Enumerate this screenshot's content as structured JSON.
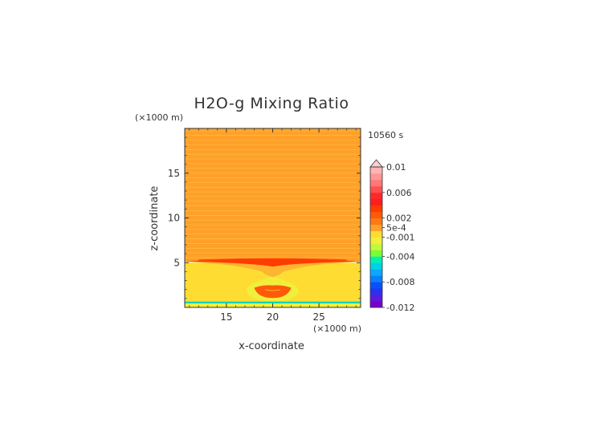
{
  "chart_data": {
    "type": "heatmap",
    "title": "H2O-g Mixing Ratio",
    "xlabel": "x-coordinate",
    "ylabel": "z-coordinate",
    "x_unit": "(×1000 m)",
    "y_unit": "(×1000 m)",
    "time_label": "10560 s",
    "xlim": [
      10.5,
      29.5
    ],
    "ylim": [
      0,
      20
    ],
    "x_ticks": [
      15,
      20,
      25
    ],
    "y_ticks": [
      5,
      10,
      15
    ],
    "x_tick_labels": [
      "15",
      "20",
      "25"
    ],
    "y_tick_labels": [
      "5",
      "10",
      "15"
    ],
    "colorbar": {
      "min": -0.012,
      "max": 0.01,
      "extend": "max",
      "tick_values": [
        0.01,
        0.006,
        0.002,
        0.0005,
        -0.001,
        -0.004,
        -0.008,
        -0.012
      ],
      "tick_labels": [
        "0.01",
        "0.006",
        "0.002",
        "5e-4",
        "-0.001",
        "-0.004",
        "-0.008",
        "-0.012"
      ],
      "colors": [
        "#7a00c8",
        "#5a1ae0",
        "#2a32f0",
        "#0a50ff",
        "#0a80ff",
        "#0aa8ff",
        "#00d2e6",
        "#00f0b4",
        "#78ff32",
        "#c8f53c",
        "#f0f03c",
        "#ffdc32",
        "#ffa028",
        "#ff7814",
        "#ff5a0a",
        "#ff3c00",
        "#ff1e1e",
        "#ff2828",
        "#ff5050",
        "#ff7878",
        "#ff9696",
        "#ffb4b4"
      ]
    },
    "regions": [
      {
        "name": "upper-background",
        "z_range": [
          5.3,
          20
        ],
        "value": 0.0006
      },
      {
        "name": "lower-background",
        "z_range": [
          0.5,
          5.0
        ],
        "value": -0.0008
      },
      {
        "name": "surface-layer",
        "z_range": [
          0,
          0.5
        ],
        "value": -0.0012
      },
      {
        "name": "inversion-band",
        "z_range": [
          4.9,
          5.5
        ],
        "value": 0.003
      },
      {
        "name": "central-plume",
        "x_range": [
          17,
          23
        ],
        "z_range": [
          0.8,
          5.0
        ],
        "value": 0.001
      },
      {
        "name": "plume-core",
        "x_range": [
          18.5,
          21.5
        ],
        "z_range": [
          1.4,
          2.3
        ],
        "value": 0.0025
      }
    ]
  }
}
